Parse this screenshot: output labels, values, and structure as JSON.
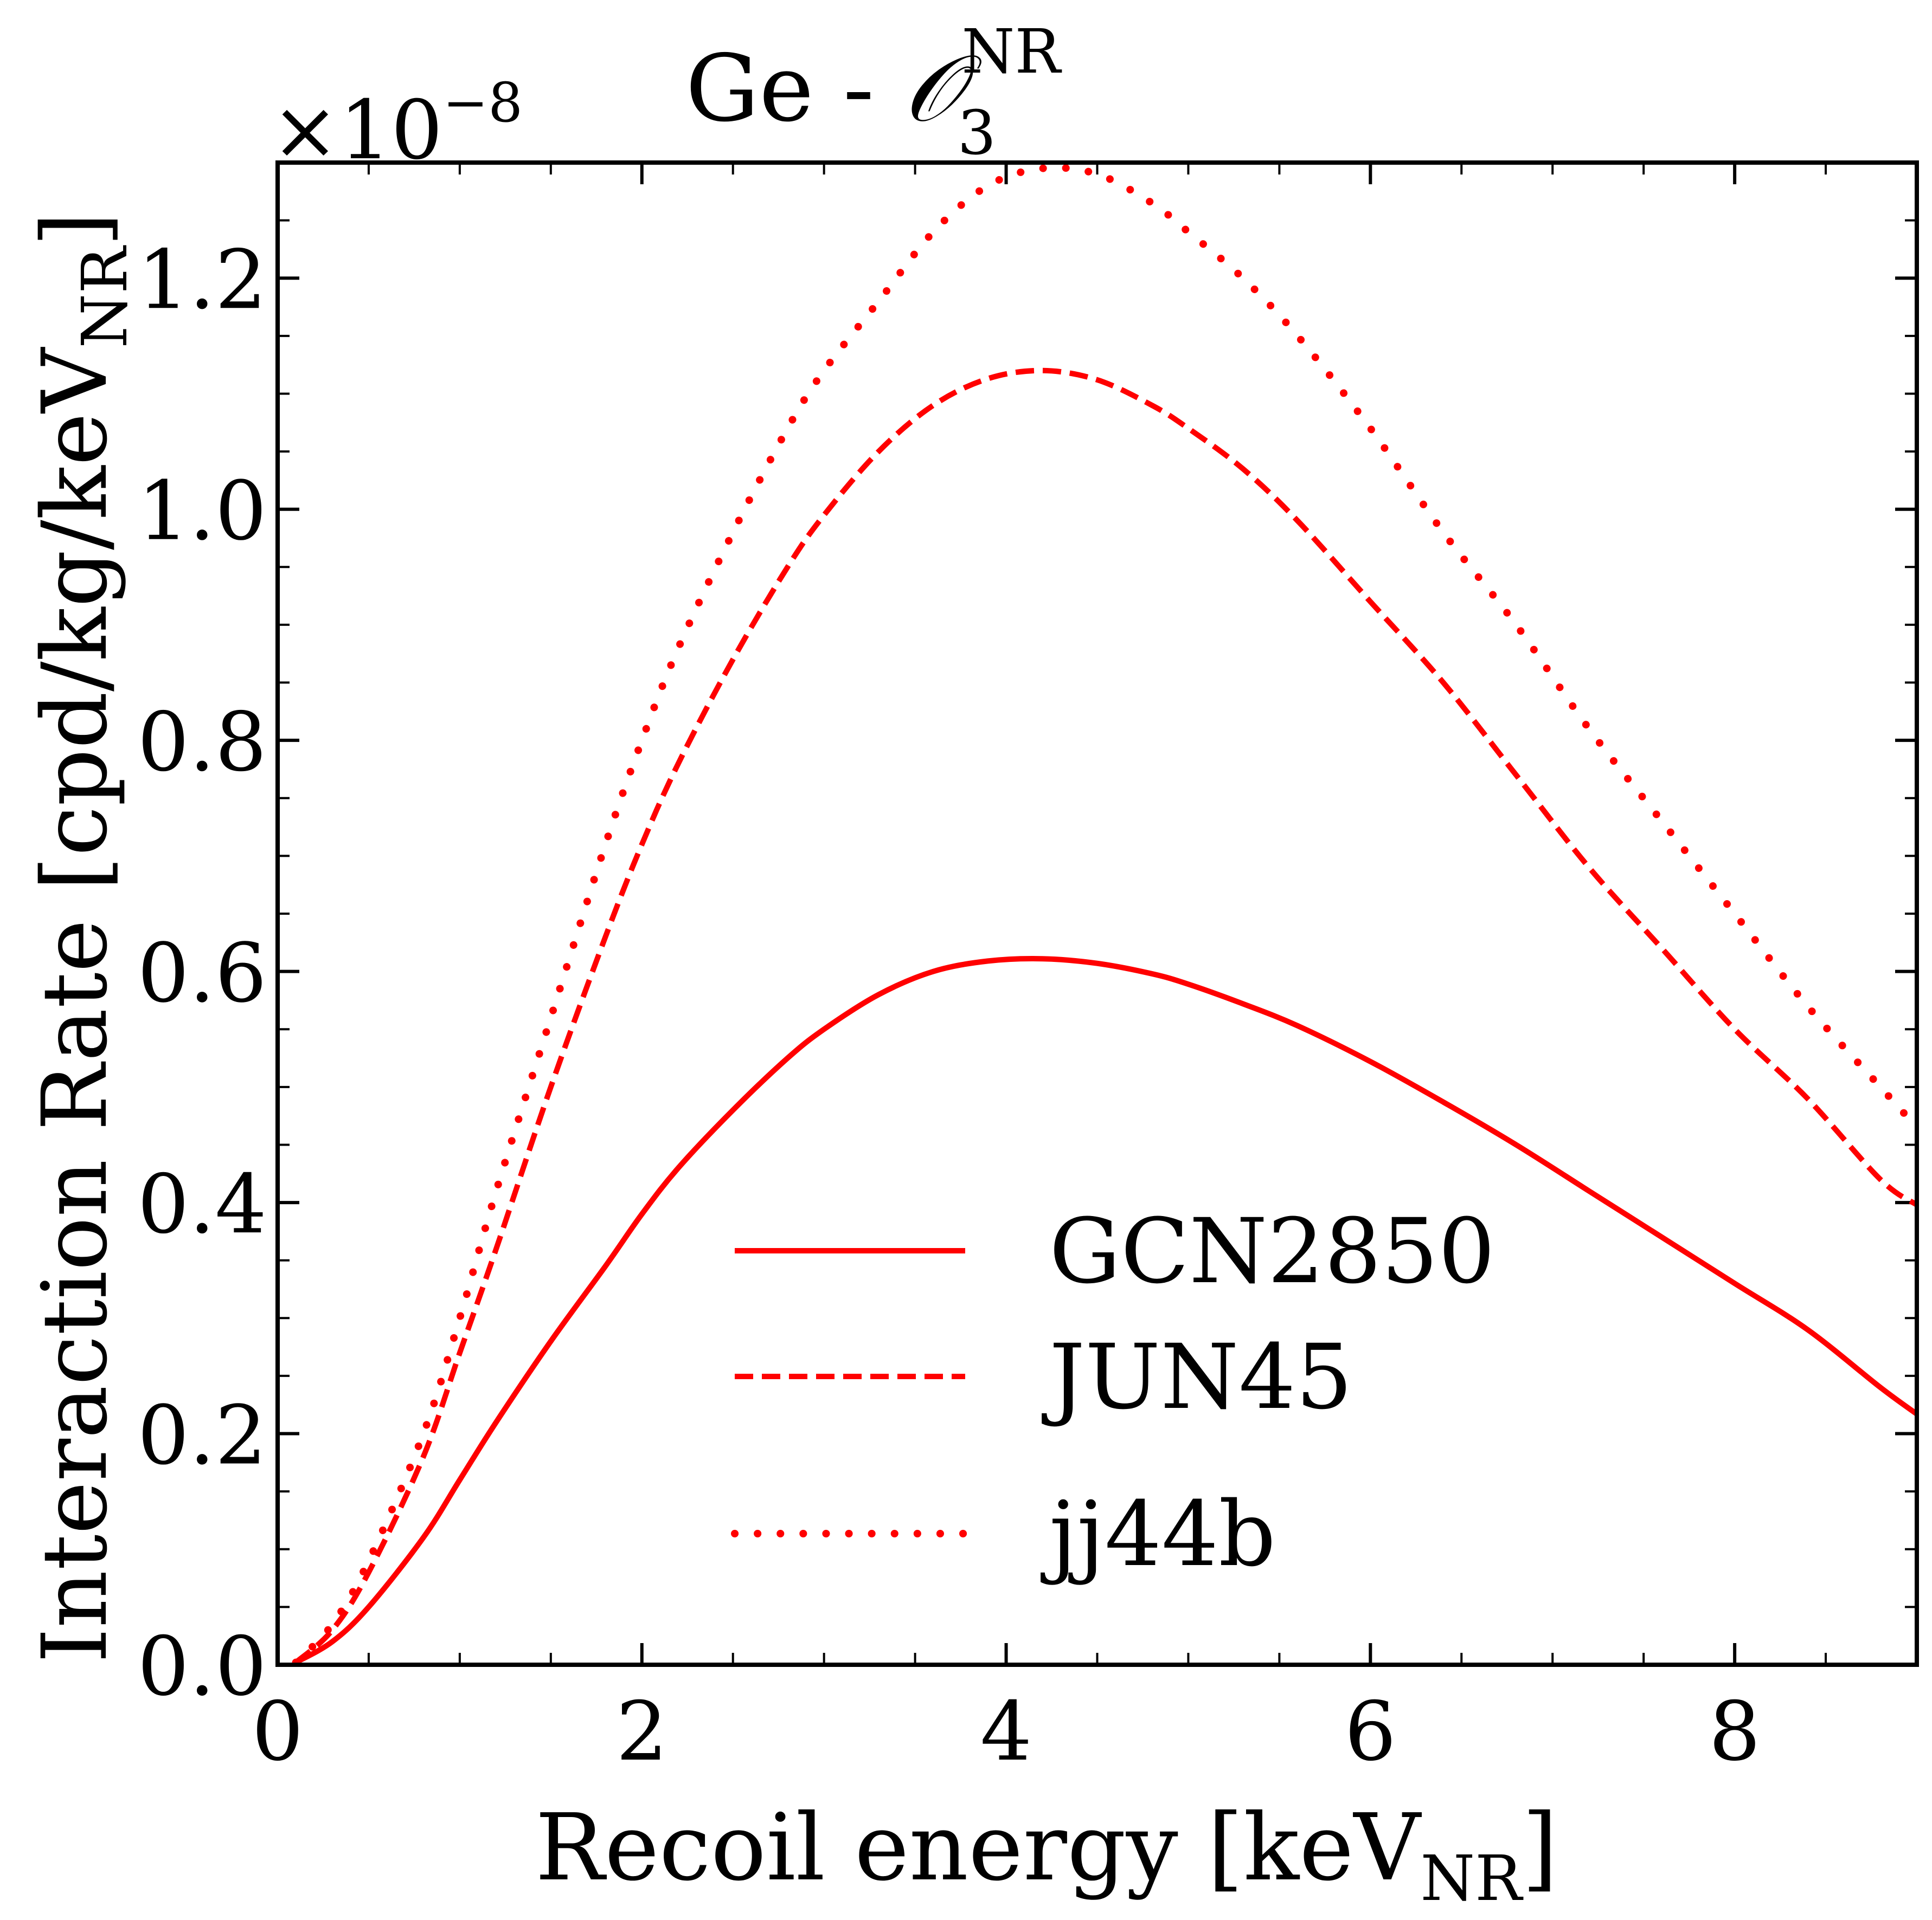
{
  "chart_data": {
    "type": "line",
    "title": {
      "prefix": "Ge - ",
      "operator": "𝒪",
      "subscript": "3",
      "superscript": "NR"
    },
    "xlabel": {
      "main": "Recoil energy [keV",
      "subscript": "NR",
      "close": "]"
    },
    "ylabel": {
      "main": "Interaction Rate [cpd/kg/keV",
      "subscript": "NR",
      "close": "]"
    },
    "offset_text": {
      "base": "×10",
      "exponent": "−8"
    },
    "xlim": [
      0,
      9
    ],
    "ylim": [
      0,
      1.3
    ],
    "xticks": [
      0,
      2,
      4,
      6,
      8
    ],
    "xtick_labels": [
      "0",
      "2",
      "4",
      "6",
      "8"
    ],
    "yticks": [
      0.0,
      0.2,
      0.4,
      0.6,
      0.8,
      1.0,
      1.2
    ],
    "ytick_labels": [
      "0.0",
      "0.2",
      "0.4",
      "0.6",
      "0.8",
      "1.0",
      "1.2"
    ],
    "legend_position": "lower-center",
    "line_color": "#ff0000",
    "series": [
      {
        "name": "GCN2850",
        "style": "solid",
        "x": [
          0.1,
          0.3,
          0.5,
          0.8,
          1.0,
          1.2,
          1.5,
          1.8,
          2.0,
          2.2,
          2.5,
          2.8,
          3.0,
          3.3,
          3.6,
          3.9,
          4.2,
          4.5,
          4.8,
          5.0,
          5.3,
          5.6,
          6.0,
          6.4,
          6.8,
          7.2,
          7.6,
          8.0,
          8.4,
          8.8,
          9.0
        ],
        "y": [
          0.002,
          0.02,
          0.05,
          0.11,
          0.16,
          0.21,
          0.28,
          0.345,
          0.39,
          0.43,
          0.48,
          0.525,
          0.55,
          0.58,
          0.6,
          0.609,
          0.611,
          0.607,
          0.598,
          0.589,
          0.572,
          0.553,
          0.522,
          0.487,
          0.45,
          0.41,
          0.37,
          0.33,
          0.29,
          0.24,
          0.217
        ]
      },
      {
        "name": "JUN45",
        "style": "dashed",
        "x": [
          0.1,
          0.3,
          0.5,
          0.8,
          1.0,
          1.2,
          1.5,
          1.8,
          2.0,
          2.2,
          2.5,
          2.8,
          3.0,
          3.3,
          3.6,
          3.9,
          4.2,
          4.5,
          4.8,
          5.0,
          5.3,
          5.6,
          6.0,
          6.4,
          6.8,
          7.2,
          7.6,
          8.0,
          8.4,
          8.8,
          9.0
        ],
        "y": [
          0.002,
          0.03,
          0.08,
          0.18,
          0.27,
          0.36,
          0.5,
          0.63,
          0.71,
          0.78,
          0.87,
          0.95,
          0.995,
          1.05,
          1.09,
          1.113,
          1.12,
          1.112,
          1.09,
          1.07,
          1.035,
          0.99,
          0.92,
          0.85,
          0.77,
          0.69,
          0.62,
          0.55,
          0.49,
          0.42,
          0.398
        ]
      },
      {
        "name": "jj44b",
        "style": "dotted",
        "x": [
          0.1,
          0.3,
          0.5,
          0.8,
          1.0,
          1.2,
          1.5,
          1.8,
          2.0,
          2.2,
          2.5,
          2.8,
          3.0,
          3.3,
          3.6,
          3.9,
          4.2,
          4.5,
          4.8,
          5.0,
          5.3,
          5.6,
          6.0,
          6.4,
          6.8,
          7.2,
          7.6,
          8.0,
          8.4,
          8.8,
          9.0
        ],
        "y": [
          0.002,
          0.035,
          0.09,
          0.2,
          0.3,
          0.41,
          0.56,
          0.71,
          0.8,
          0.88,
          0.98,
          1.07,
          1.12,
          1.18,
          1.24,
          1.28,
          1.295,
          1.29,
          1.265,
          1.24,
          1.2,
          1.15,
          1.07,
          0.98,
          0.9,
          0.81,
          0.73,
          0.65,
          0.57,
          0.5,
          0.465
        ]
      }
    ]
  }
}
